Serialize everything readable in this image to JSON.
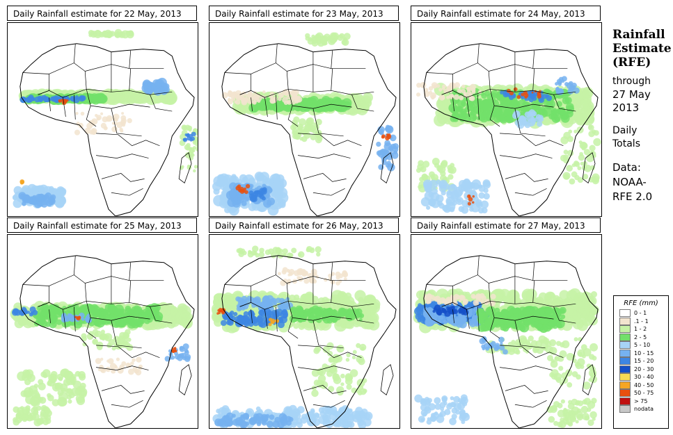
{
  "panels": [
    {
      "title": "Daily Rainfall estimate for  22 May, 2013"
    },
    {
      "title": "Daily Rainfall estimate for  23 May, 2013"
    },
    {
      "title": "Daily Rainfall estimate for  24 May, 2013"
    },
    {
      "title": "Daily Rainfall estimate for  25 May, 2013"
    },
    {
      "title": "Daily Rainfall estimate for  26 May, 2013"
    },
    {
      "title": "Daily Rainfall estimate for  27 May, 2013"
    }
  ],
  "sidebar": {
    "heading_line1": "Rainfall",
    "heading_line2": "Estimate",
    "heading_line3": "(RFE)",
    "through_label": "through",
    "through_date": "27 May",
    "through_year": "2013",
    "totals_line1": "Daily",
    "totals_line2": "Totals",
    "data_label": "Data:",
    "data_source1": "NOAA-",
    "data_source2": "RFE 2.0"
  },
  "legend": {
    "title": "RFE (mm)",
    "items": [
      {
        "label": "0 - 1",
        "color": "#ffffff"
      },
      {
        "label": ".1 - 1",
        "color": "#f2e4cf"
      },
      {
        "label": "1 - 2",
        "color": "#c6f2a6"
      },
      {
        "label": "2 - 5",
        "color": "#72e06a"
      },
      {
        "label": "5 - 10",
        "color": "#a7d3f7"
      },
      {
        "label": "10 - 15",
        "color": "#76b2f0"
      },
      {
        "label": "15 - 20",
        "color": "#3d86e3"
      },
      {
        "label": "20 - 30",
        "color": "#1550c8"
      },
      {
        "label": "30 - 40",
        "color": "#f8db55"
      },
      {
        "label": "40 - 50",
        "color": "#f5a623"
      },
      {
        "label": "50 - 75",
        "color": "#e8500f"
      },
      {
        "label": "> 75",
        "color": "#c01010"
      },
      {
        "label": "nodata",
        "color": "#c8c8c8"
      }
    ]
  }
}
